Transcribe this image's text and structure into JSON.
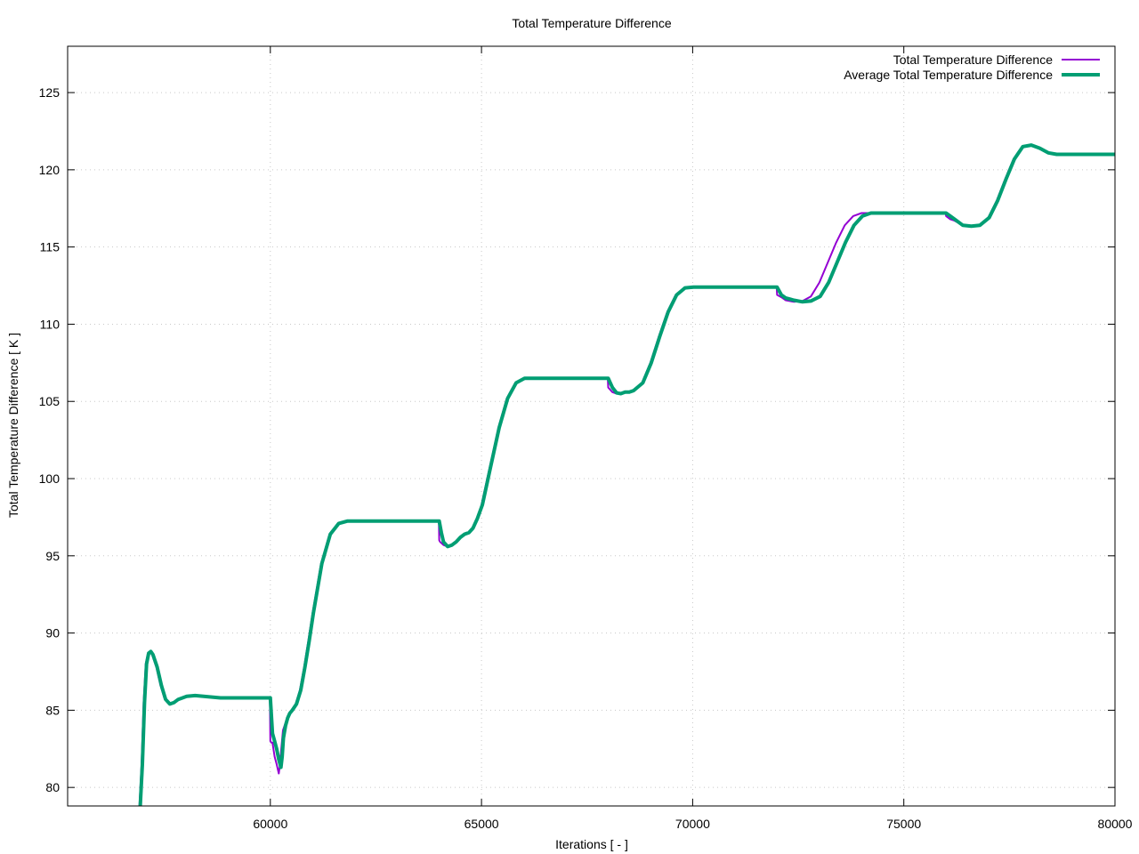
{
  "chart_data": {
    "type": "line",
    "title": "Total Temperature Difference",
    "xlabel": "Iterations [ - ]",
    "ylabel": "Total Temperature Difference [ K ]",
    "xlim": [
      55200,
      80000
    ],
    "ylim": [
      78.8,
      128
    ],
    "grid": true,
    "legend_position": "top-right",
    "xticks": [
      60000,
      65000,
      70000,
      75000,
      80000
    ],
    "xtick_labels": [
      "60000",
      "65000",
      "70000",
      "75000",
      "80000"
    ],
    "yticks": [
      80,
      85,
      90,
      95,
      100,
      105,
      110,
      115,
      120,
      125
    ],
    "ytick_labels": [
      "80",
      "85",
      "90",
      "95",
      "100",
      "105",
      "110",
      "115",
      "120",
      "125"
    ],
    "series": [
      {
        "name": "Total Temperature Difference",
        "color": "#9400d3",
        "x": [
          56900,
          56950,
          57000,
          57050,
          57100,
          57150,
          57200,
          57300,
          57400,
          57500,
          57600,
          57700,
          57800,
          57900,
          58000,
          58200,
          58400,
          58600,
          58800,
          59000,
          59300,
          59600,
          59990,
          60000,
          60020,
          60050,
          60100,
          60150,
          60200,
          60230,
          60260,
          60300,
          60350,
          60400,
          60450,
          60500,
          60600,
          60700,
          60800,
          60900,
          61000,
          61200,
          61400,
          61600,
          61800,
          62000,
          62200,
          63000,
          63990,
          64000,
          64020,
          64100,
          64200,
          64300,
          64400,
          64500,
          64600,
          64700,
          64800,
          64900,
          65000,
          65200,
          65400,
          65600,
          65800,
          66000,
          66200,
          66600,
          67990,
          68000,
          68100,
          68200,
          68300,
          68400,
          68500,
          68600,
          68800,
          69000,
          69200,
          69400,
          69600,
          69800,
          70000,
          70200,
          71000,
          71990,
          72000,
          72100,
          72200,
          72400,
          72600,
          72800,
          73000,
          73200,
          73400,
          73600,
          73800,
          74000,
          74200,
          75000,
          75990,
          76000,
          76100,
          76200,
          76400,
          76600,
          76800,
          77000,
          77200,
          77400,
          77600,
          77800,
          78000,
          78200,
          78400,
          78600,
          78800,
          79000,
          79500,
          80000
        ],
        "y": [
          78.8,
          81.5,
          85.5,
          88.0,
          88.7,
          88.8,
          88.6,
          87.8,
          86.6,
          85.7,
          85.4,
          85.5,
          85.7,
          85.8,
          85.9,
          85.95,
          85.9,
          85.85,
          85.8,
          85.8,
          85.8,
          85.8,
          85.8,
          83.0,
          82.9,
          82.9,
          82.0,
          81.5,
          80.9,
          81.5,
          82.5,
          83.7,
          84.1,
          84.5,
          84.8,
          85.0,
          85.4,
          86.3,
          87.8,
          89.5,
          91.3,
          94.5,
          96.4,
          97.1,
          97.25,
          97.25,
          97.25,
          97.25,
          97.25,
          96.0,
          95.9,
          95.7,
          95.6,
          95.7,
          95.9,
          96.2,
          96.4,
          96.5,
          96.8,
          97.4,
          98.3,
          100.8,
          103.3,
          105.2,
          106.2,
          106.5,
          106.5,
          106.5,
          106.5,
          105.9,
          105.6,
          105.5,
          105.5,
          105.6,
          105.6,
          105.7,
          106.2,
          107.5,
          109.2,
          110.8,
          111.9,
          112.35,
          112.4,
          112.4,
          112.4,
          112.4,
          111.9,
          111.75,
          111.55,
          111.45,
          111.5,
          111.8,
          112.7,
          114.0,
          115.3,
          116.4,
          117.0,
          117.2,
          117.2,
          117.2,
          117.2,
          117.0,
          116.8,
          116.7,
          116.4,
          116.35,
          116.4,
          116.9,
          118.0,
          119.4,
          120.7,
          121.5,
          121.6,
          121.4,
          121.1,
          121.0,
          121.0,
          121.0,
          121.0,
          121.0
        ]
      },
      {
        "name": "Average Total Temperature Difference",
        "color": "#009e73",
        "x": [
          56920,
          56970,
          57020,
          57070,
          57120,
          57170,
          57220,
          57320,
          57420,
          57520,
          57620,
          57720,
          57820,
          57920,
          58020,
          58220,
          58420,
          58620,
          58820,
          59020,
          59320,
          59620,
          60000,
          60050,
          60100,
          60150,
          60200,
          60250,
          60280,
          60310,
          60360,
          60410,
          60460,
          60520,
          60620,
          60720,
          60820,
          60920,
          61020,
          61220,
          61420,
          61620,
          61820,
          62020,
          62220,
          63000,
          64000,
          64050,
          64100,
          64200,
          64300,
          64400,
          64500,
          64600,
          64700,
          64800,
          64900,
          65020,
          65220,
          65420,
          65620,
          65820,
          66020,
          66220,
          66600,
          68000,
          68100,
          68200,
          68300,
          68400,
          68500,
          68600,
          68820,
          69020,
          69220,
          69420,
          69620,
          69820,
          70020,
          70220,
          71000,
          72000,
          72100,
          72200,
          72400,
          72600,
          72800,
          73020,
          73220,
          73420,
          73620,
          73820,
          74020,
          74220,
          75000,
          76000,
          76100,
          76200,
          76400,
          76600,
          76800,
          77020,
          77220,
          77420,
          77620,
          77820,
          78020,
          78220,
          78420,
          78620,
          78820,
          79020,
          79500,
          80000
        ],
        "y": [
          78.8,
          81.5,
          85.5,
          88.0,
          88.7,
          88.8,
          88.6,
          87.8,
          86.6,
          85.7,
          85.4,
          85.5,
          85.7,
          85.8,
          85.9,
          85.95,
          85.9,
          85.85,
          85.8,
          85.8,
          85.8,
          85.8,
          85.8,
          83.5,
          83.0,
          82.5,
          81.8,
          81.3,
          82.0,
          83.2,
          84.0,
          84.5,
          84.8,
          85.0,
          85.4,
          86.3,
          87.8,
          89.5,
          91.3,
          94.5,
          96.4,
          97.1,
          97.25,
          97.25,
          97.25,
          97.25,
          97.25,
          96.5,
          95.9,
          95.6,
          95.7,
          95.9,
          96.2,
          96.4,
          96.5,
          96.8,
          97.4,
          98.3,
          100.8,
          103.3,
          105.2,
          106.2,
          106.5,
          106.5,
          106.5,
          106.5,
          105.9,
          105.55,
          105.5,
          105.6,
          105.6,
          105.7,
          106.2,
          107.5,
          109.2,
          110.8,
          111.9,
          112.35,
          112.4,
          112.4,
          112.4,
          112.4,
          111.9,
          111.7,
          111.55,
          111.45,
          111.5,
          111.8,
          112.7,
          114.0,
          115.3,
          116.4,
          117.0,
          117.2,
          117.2,
          117.2,
          117.0,
          116.8,
          116.4,
          116.35,
          116.4,
          116.9,
          118.0,
          119.4,
          120.7,
          121.5,
          121.6,
          121.4,
          121.1,
          121.0,
          121.0,
          121.0,
          121.0,
          121.0
        ]
      }
    ]
  }
}
